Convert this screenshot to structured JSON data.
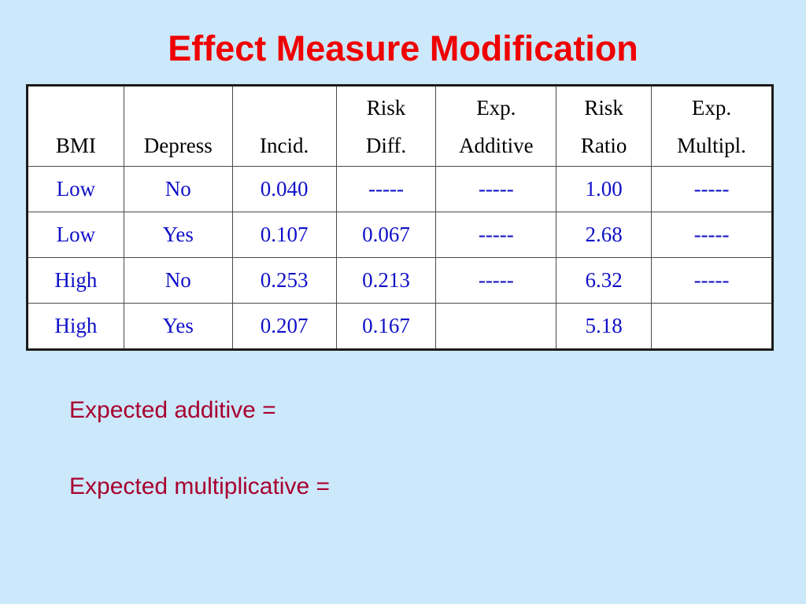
{
  "title": "Effect Measure Modification",
  "colors": {
    "background": "#cce8fb",
    "title": "#f00000",
    "header_text": "#000000",
    "cell_text": "#1010c8",
    "note_text": "#a8002e"
  },
  "table": {
    "headers": [
      {
        "line1": "",
        "line2": "BMI"
      },
      {
        "line1": "",
        "line2": "Depress"
      },
      {
        "line1": "",
        "line2": "Incid."
      },
      {
        "line1": "Risk",
        "line2": "Diff."
      },
      {
        "line1": "Exp.",
        "line2": "Additive"
      },
      {
        "line1": "Risk",
        "line2": "Ratio"
      },
      {
        "line1": "Exp.",
        "line2": "Multipl."
      }
    ],
    "rows": [
      [
        "Low",
        "No",
        "0.040",
        "-----",
        "-----",
        "1.00",
        "-----"
      ],
      [
        "Low",
        "Yes",
        "0.107",
        "0.067",
        "-----",
        "2.68",
        "-----"
      ],
      [
        "High",
        "No",
        "0.253",
        "0.213",
        "-----",
        "6.32",
        "-----"
      ],
      [
        "High",
        "Yes",
        "0.207",
        "0.167",
        "",
        "5.18",
        ""
      ]
    ]
  },
  "notes": {
    "expected_additive": "Expected additive =",
    "expected_multiplicative": "Expected multiplicative ="
  }
}
